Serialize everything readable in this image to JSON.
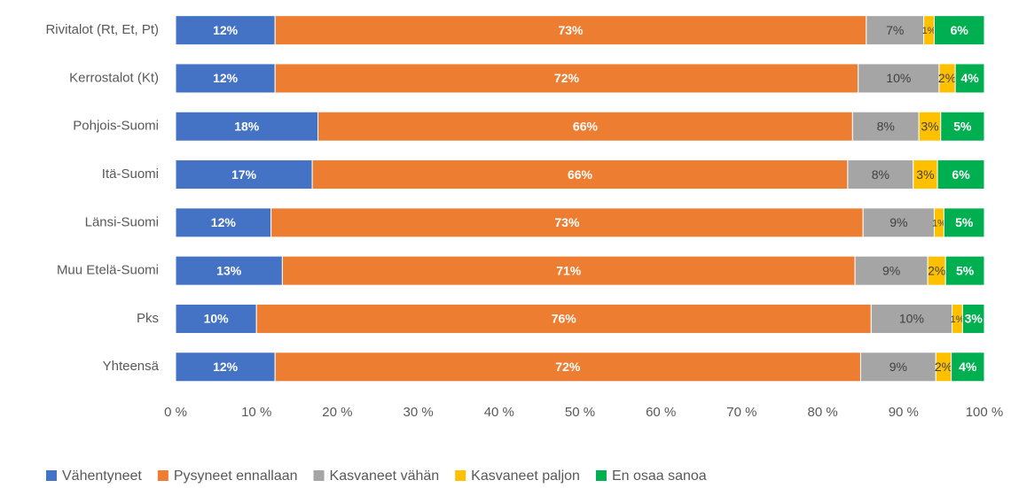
{
  "chart_data": {
    "type": "stacked-bar-horizontal",
    "categories": [
      "Rivitalot (Rt, Et, Pt)",
      "Kerrostalot (Kt)",
      "Pohjois-Suomi",
      "Itä-Suomi",
      "Länsi-Suomi",
      "Muu Etelä-Suomi",
      "Pks",
      "Yhteensä"
    ],
    "series": [
      {
        "name": "Vähentyneet",
        "color": "#4472c4",
        "label_color": "#ffffff",
        "values": [
          12.3,
          12.3,
          17.6,
          16.9,
          11.8,
          13.2,
          10.0,
          12.3
        ],
        "value_labels": [
          "12%",
          "12%",
          "18%",
          "17%",
          "12%",
          "13%",
          "10%",
          "12%"
        ]
      },
      {
        "name": "Pysyneet ennallaan",
        "color": "#ed7d31",
        "label_color": "#ffffff",
        "values": [
          73.1,
          72.1,
          66.1,
          66.2,
          73.2,
          70.8,
          76.0,
          72.4
        ],
        "value_labels": [
          "73%",
          "72%",
          "66%",
          "66%",
          "73%",
          "71%",
          "76%",
          "72%"
        ]
      },
      {
        "name": "Kasvaneet vähän",
        "color": "#a5a5a5",
        "label_color": "#404040",
        "values": [
          7.1,
          10.0,
          8.2,
          8.1,
          8.8,
          9.0,
          10.0,
          9.3
        ],
        "value_labels": [
          "7%",
          "10%",
          "8%",
          "8%",
          "9%",
          "9%",
          "10%",
          "9%"
        ]
      },
      {
        "name": "Kasvaneet paljon",
        "color": "#ffc000",
        "label_color": "#404040",
        "values": [
          1.3,
          2.0,
          2.7,
          3.0,
          1.2,
          2.2,
          1.3,
          1.9
        ],
        "value_labels": [
          "1%",
          "2%",
          "3%",
          "3%",
          "1%",
          "2%",
          "1%",
          "2%"
        ]
      },
      {
        "name": "En osaa sanoa",
        "color": "#00b050",
        "label_color": "#ffffff",
        "values": [
          6.2,
          3.6,
          5.4,
          5.8,
          5.0,
          4.8,
          2.7,
          4.1
        ],
        "value_labels": [
          "6%",
          "4%",
          "5%",
          "6%",
          "5%",
          "5%",
          "3%",
          "4%"
        ]
      }
    ],
    "xlim": [
      0,
      100
    ],
    "xticks": [
      {
        "value": 0,
        "label": "0 %"
      },
      {
        "value": 10,
        "label": "10 %"
      },
      {
        "value": 20,
        "label": "20 %"
      },
      {
        "value": 30,
        "label": "30 %"
      },
      {
        "value": 40,
        "label": "40 %"
      },
      {
        "value": 50,
        "label": "50 %"
      },
      {
        "value": 60,
        "label": "60 %"
      },
      {
        "value": 70,
        "label": "70 %"
      },
      {
        "value": 80,
        "label": "80 %"
      },
      {
        "value": 90,
        "label": "90 %"
      },
      {
        "value": 100,
        "label": "100 %"
      }
    ],
    "legend": "bottom"
  }
}
